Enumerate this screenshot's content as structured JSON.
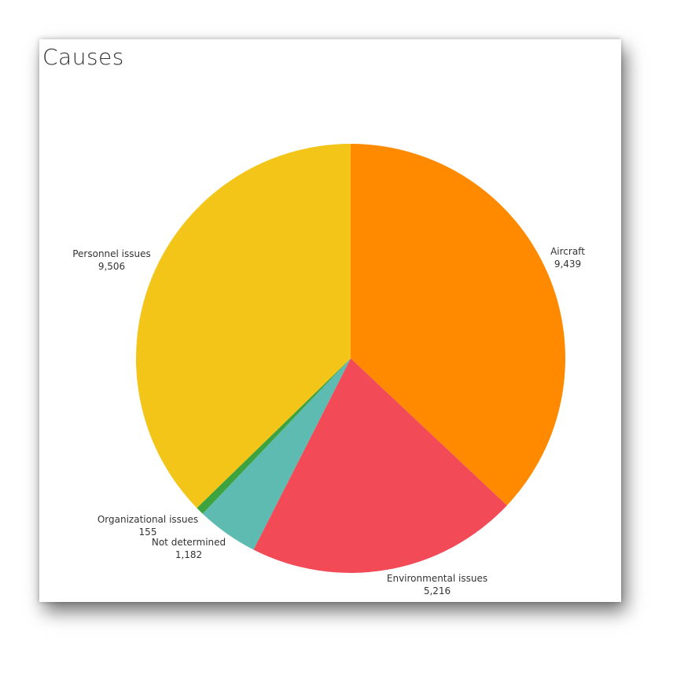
{
  "chart_data": {
    "type": "pie",
    "title": "Causes",
    "slices": [
      {
        "name": "Aircraft",
        "value": 9439,
        "display": "9,439",
        "color": "#FF8A00"
      },
      {
        "name": "Environmental issues",
        "value": 5216,
        "display": "5,216",
        "color": "#F24B57"
      },
      {
        "name": "Not determined",
        "value": 1182,
        "display": "1,182",
        "color": "#5EBBB2"
      },
      {
        "name": "Organizational issues",
        "value": 155,
        "display": "155",
        "color": "#3DA33F"
      },
      {
        "name": "Personnel issues",
        "value": 9506,
        "display": "9,506",
        "color": "#F2C518"
      }
    ],
    "start_angle": "12 o'clock",
    "direction": "clockwise",
    "legend": "none"
  }
}
